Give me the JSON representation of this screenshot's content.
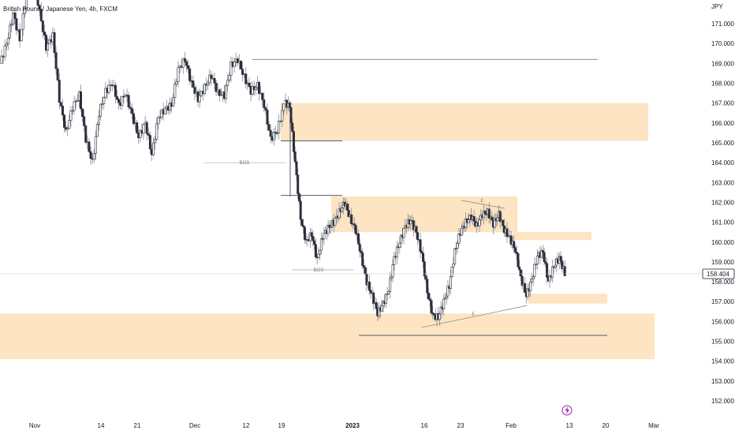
{
  "chart_data": {
    "type": "candlestick",
    "title": "British Pound / Japanese Yen, 4h, FXCM",
    "currency": "JPY",
    "last_price": "158.404",
    "ylim": [
      151.5,
      174.5
    ],
    "y_ticks": [
      "152.000",
      "153.000",
      "154.000",
      "155.000",
      "156.000",
      "157.000",
      "158.000",
      "159.000",
      "160.000",
      "161.000",
      "162.000",
      "163.000",
      "164.000",
      "165.000",
      "166.000",
      "167.000",
      "168.000",
      "169.000",
      "170.000",
      "171.000"
    ],
    "x_ticks": [
      {
        "label": "Nov",
        "bold": false
      },
      {
        "label": "14",
        "bold": false
      },
      {
        "label": "21",
        "bold": false
      },
      {
        "label": "Dec",
        "bold": false
      },
      {
        "label": "12",
        "bold": false
      },
      {
        "label": "19",
        "bold": false
      },
      {
        "label": "2023",
        "bold": true
      },
      {
        "label": "16",
        "bold": false
      },
      {
        "label": "23",
        "bold": false
      },
      {
        "label": "Feb",
        "bold": false
      },
      {
        "label": "13",
        "bold": false
      },
      {
        "label": "20",
        "bold": false
      },
      {
        "label": "Mar",
        "bold": false
      }
    ],
    "price_path": [
      169.0,
      170.0,
      171.5,
      170.2,
      172.5,
      173.6,
      171.6,
      169.8,
      170.4,
      167.2,
      165.5,
      166.8,
      167.4,
      165.2,
      164.0,
      166.5,
      167.6,
      168.0,
      166.9,
      167.5,
      166.4,
      165.3,
      166.0,
      164.4,
      166.3,
      166.7,
      166.9,
      168.7,
      169.2,
      168.0,
      167.2,
      167.8,
      168.4,
      167.5,
      167.4,
      168.9,
      169.2,
      168.3,
      167.6,
      167.9,
      166.9,
      165.2,
      165.6,
      166.9
    ],
    "price_path_2": [
      167.1,
      166.8,
      164.0,
      161.2,
      160.0,
      160.4,
      159.1,
      160.3,
      160.7,
      161.0,
      161.5,
      162.0,
      161.2,
      160.6,
      159.3,
      158.0,
      157.3,
      156.4,
      156.9,
      157.6,
      159.2,
      160.0,
      160.8,
      161.1,
      160.5,
      159.4,
      157.5,
      156.3,
      156.2,
      157.0,
      157.8,
      159.5,
      160.5,
      161.0,
      161.3,
      160.8,
      161.4,
      161.5,
      160.9,
      161.4,
      160.6,
      160.2,
      159.6,
      158.2,
      157.3,
      158.1,
      159.3,
      159.5,
      158.0,
      158.8,
      159.2,
      158.4
    ],
    "zones": [
      {
        "low": 165.1,
        "high": 167.0
      },
      {
        "low": 160.5,
        "high": 162.3
      },
      {
        "low": 160.1,
        "high": 160.5
      },
      {
        "low": 156.9,
        "high": 157.4
      },
      {
        "low": 154.1,
        "high": 156.4
      }
    ],
    "levels": [
      {
        "price": 169.2
      },
      {
        "price": 165.1
      },
      {
        "price": 162.35
      },
      {
        "price": 155.3
      }
    ],
    "annotations": [
      {
        "text": "BOS",
        "price": 164.0
      },
      {
        "text": "BOS",
        "price": 158.6
      },
      {
        "text": "£",
        "price": 162.1
      },
      {
        "text": "£",
        "price": 156.4
      }
    ],
    "colors": {
      "zone": "#fde4c2",
      "candle": "#2a2e39",
      "wick": "#787b86",
      "level_line": "#555a66",
      "grid_text": "#131722",
      "flash_icon": "#9c27b0"
    }
  }
}
